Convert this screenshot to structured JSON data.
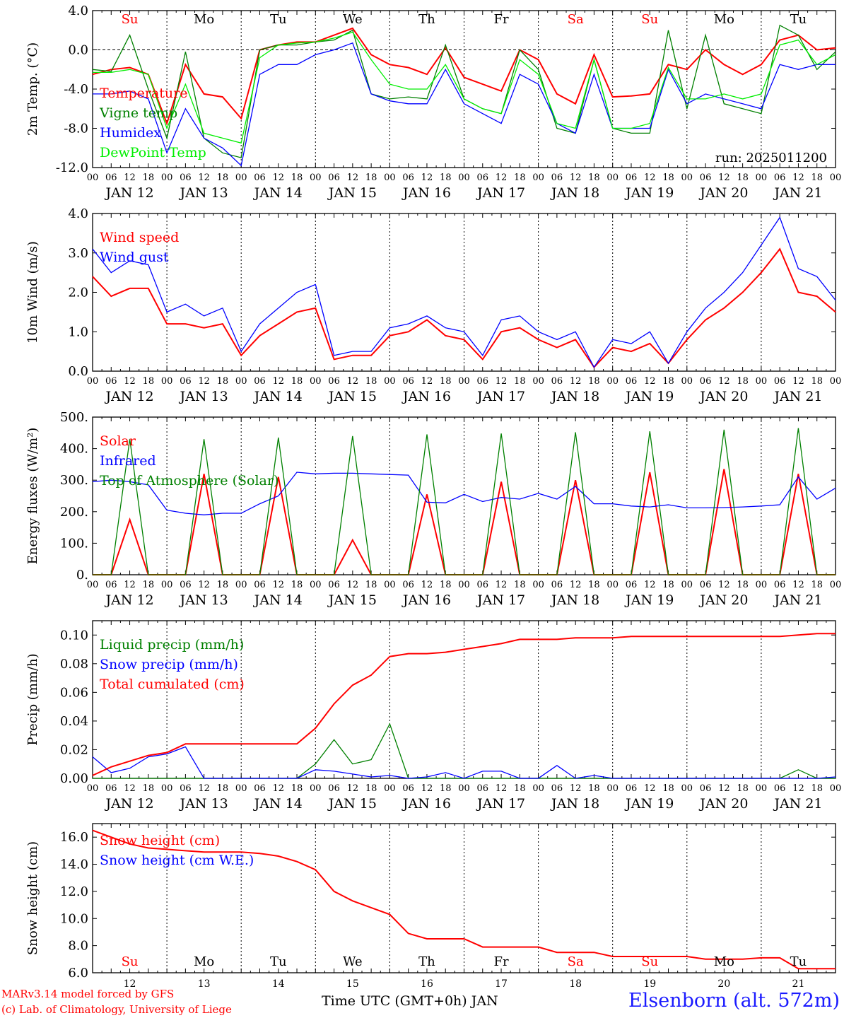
{
  "footer": {
    "model": "MARv3.14 model forced by GFS",
    "lab": "(c) Lab. of Climatology, University of Liege",
    "station": "Elsenborn (alt. 572m)",
    "xaxis_title": "Time UTC (GMT+0h) JAN"
  },
  "colors": {
    "red": "#ff0000",
    "green": "#008000",
    "blue": "#0000ff",
    "lightgreen": "#00ee00"
  },
  "chart_data": [
    {
      "type": "line",
      "ylabel": "2m Temp. (°C)",
      "ylim": [
        -12,
        4
      ],
      "yticks": [
        "4.0",
        "0.0",
        "-4.0",
        "-8.0",
        "-12.0"
      ],
      "yticks_values": [
        4,
        0,
        -4,
        -8,
        -12
      ],
      "zero_line": true,
      "weekday_labels": [
        "Su",
        "Mo",
        "Tu",
        "We",
        "Th",
        "Fr",
        "Sa",
        "Su",
        "Mo",
        "Tu"
      ],
      "weekday_colors": [
        "#ff0000",
        "#000000",
        "#000000",
        "#000000",
        "#000000",
        "#000000",
        "#ff0000",
        "#ff0000",
        "#000000",
        "#000000"
      ],
      "annotation": "run: 2025011200",
      "x_hours": [
        0,
        6,
        12,
        18,
        24,
        30,
        36,
        42,
        48,
        54,
        60,
        66,
        72,
        78,
        84,
        90,
        96,
        102,
        108,
        114,
        120,
        126,
        132,
        138,
        144,
        150,
        156,
        162,
        168,
        174,
        180,
        186,
        192,
        198,
        204,
        210,
        216,
        222,
        228,
        234,
        240
      ],
      "series": [
        {
          "name": "Temperature",
          "color": "#ff0000",
          "values": [
            -2.5,
            -2.0,
            -1.8,
            -2.5,
            -7.5,
            -1.5,
            -4.5,
            -4.8,
            -7.0,
            0.0,
            0.5,
            0.8,
            0.8,
            1.5,
            2.2,
            -0.5,
            -1.5,
            -1.8,
            -2.5,
            0.2,
            -2.8,
            -3.5,
            -4.2,
            0.0,
            -1.0,
            -4.5,
            -5.5,
            -0.5,
            -4.8,
            -4.7,
            -4.5,
            -1.5,
            -2.0,
            0.0,
            -1.5,
            -2.5,
            -1.5,
            1.0,
            1.5,
            0.0,
            0.2
          ]
        },
        {
          "name": "Vigne temp",
          "color": "#008000",
          "values": [
            -2.0,
            -2.2,
            1.5,
            -4.0,
            -9.0,
            -0.2,
            -9.0,
            -10.5,
            -11.0,
            0.0,
            0.5,
            0.5,
            0.8,
            1.0,
            2.0,
            -4.5,
            -5.0,
            -4.8,
            -5.0,
            0.5,
            -5.0,
            -6.0,
            -6.5,
            0.0,
            -2.0,
            -8.0,
            -8.5,
            -1.0,
            -8.0,
            -8.5,
            -8.5,
            2.0,
            -6.0,
            1.5,
            -5.5,
            -6.0,
            -6.5,
            2.5,
            1.5,
            -2.0,
            -0.2
          ]
        },
        {
          "name": "Humidex",
          "color": "#0000ff",
          "values": [
            -4.5,
            -4.5,
            -4.2,
            -5.0,
            -10.5,
            -6.0,
            -9.0,
            -10.0,
            -11.8,
            -2.5,
            -1.5,
            -1.5,
            -0.5,
            0.0,
            0.7,
            -4.5,
            -5.2,
            -5.5,
            -5.5,
            -2.0,
            -5.5,
            -6.5,
            -7.5,
            -2.5,
            -3.5,
            -7.5,
            -8.5,
            -2.5,
            -8.0,
            -8.0,
            -8.0,
            -2.0,
            -5.5,
            -4.5,
            -5.0,
            -5.5,
            -6.0,
            -1.5,
            -2.0,
            -1.5,
            -1.5
          ]
        },
        {
          "name": "DewPoint Temp",
          "color": "#00ee00",
          "values": [
            -2.3,
            -2.3,
            -2.0,
            -2.5,
            -8.0,
            -3.5,
            -8.5,
            -9.0,
            -9.5,
            -0.8,
            0.5,
            0.7,
            0.8,
            1.2,
            1.8,
            -1.0,
            -3.5,
            -4.0,
            -4.0,
            -1.5,
            -5.0,
            -6.0,
            -6.5,
            -1.0,
            -2.5,
            -7.5,
            -8.0,
            -1.0,
            -8.0,
            -8.0,
            -7.5,
            -1.8,
            -5.0,
            -5.0,
            -4.5,
            -5.0,
            -4.5,
            0.5,
            1.0,
            -1.5,
            -0.5
          ]
        }
      ]
    },
    {
      "type": "line",
      "ylabel": "10m Wind (m/s)",
      "ylim": [
        0,
        4
      ],
      "yticks": [
        "4.0",
        "3.0",
        "2.0",
        "1.0",
        "0.0"
      ],
      "yticks_values": [
        4,
        3,
        2,
        1,
        0
      ],
      "x_hours": [
        0,
        6,
        12,
        18,
        24,
        30,
        36,
        42,
        48,
        54,
        60,
        66,
        72,
        78,
        84,
        90,
        96,
        102,
        108,
        114,
        120,
        126,
        132,
        138,
        144,
        150,
        156,
        162,
        168,
        174,
        180,
        186,
        192,
        198,
        204,
        210,
        216,
        222,
        228,
        234,
        240
      ],
      "series": [
        {
          "name": "Wind speed",
          "color": "#ff0000",
          "values": [
            2.4,
            1.9,
            2.1,
            2.1,
            1.2,
            1.2,
            1.1,
            1.2,
            0.4,
            0.9,
            1.2,
            1.5,
            1.6,
            0.3,
            0.4,
            0.4,
            0.9,
            1.0,
            1.3,
            0.9,
            0.8,
            0.3,
            1.0,
            1.1,
            0.8,
            0.6,
            0.8,
            0.1,
            0.6,
            0.5,
            0.7,
            0.2,
            0.8,
            1.3,
            1.6,
            2.0,
            2.5,
            3.1,
            2.0,
            1.9,
            1.5
          ]
        },
        {
          "name": "Wind gust",
          "color": "#0000ff",
          "values": [
            3.1,
            2.5,
            2.8,
            2.7,
            1.5,
            1.7,
            1.4,
            1.6,
            0.5,
            1.2,
            1.6,
            2.0,
            2.2,
            0.4,
            0.5,
            0.5,
            1.1,
            1.2,
            1.4,
            1.1,
            1.0,
            0.4,
            1.3,
            1.4,
            1.0,
            0.8,
            1.0,
            0.1,
            0.8,
            0.7,
            1.0,
            0.2,
            1.0,
            1.6,
            2.0,
            2.5,
            3.2,
            3.9,
            2.6,
            2.4,
            1.8
          ]
        }
      ]
    },
    {
      "type": "line",
      "ylabel": "Energy fluxes (W/m²)",
      "ylim": [
        0,
        500
      ],
      "yticks": [
        "500.",
        "400.",
        "300.",
        "200.",
        "100.",
        "0."
      ],
      "yticks_values": [
        500,
        400,
        300,
        200,
        100,
        0
      ],
      "x_hours": [
        0,
        6,
        12,
        18,
        24,
        30,
        36,
        42,
        48,
        54,
        60,
        66,
        72,
        78,
        84,
        90,
        96,
        102,
        108,
        114,
        120,
        126,
        132,
        138,
        144,
        150,
        156,
        162,
        168,
        174,
        180,
        186,
        192,
        198,
        204,
        210,
        216,
        222,
        228,
        234,
        240
      ],
      "series": [
        {
          "name": "Solar",
          "color": "#ff0000",
          "values": [
            0,
            0,
            175,
            0,
            0,
            0,
            320,
            0,
            0,
            0,
            310,
            0,
            0,
            0,
            110,
            0,
            0,
            0,
            255,
            0,
            0,
            0,
            295,
            0,
            0,
            0,
            300,
            0,
            0,
            0,
            325,
            0,
            0,
            0,
            335,
            0,
            0,
            0,
            320,
            0,
            0
          ]
        },
        {
          "name": "Infrared",
          "color": "#0000ff",
          "values": [
            295,
            300,
            295,
            285,
            205,
            195,
            190,
            195,
            195,
            225,
            250,
            325,
            320,
            322,
            322,
            320,
            318,
            316,
            230,
            228,
            255,
            232,
            245,
            240,
            258,
            240,
            280,
            225,
            225,
            218,
            215,
            222,
            212,
            212,
            213,
            215,
            218,
            222,
            310,
            240,
            275
          ]
        },
        {
          "name": "Top of Atmosphere (Solar)",
          "color": "#008000",
          "values": [
            0,
            0,
            430,
            0,
            0,
            0,
            430,
            0,
            0,
            0,
            435,
            0,
            0,
            0,
            440,
            0,
            0,
            0,
            445,
            0,
            0,
            0,
            448,
            0,
            0,
            0,
            452,
            0,
            0,
            0,
            455,
            0,
            0,
            0,
            460,
            0,
            0,
            0,
            465,
            0,
            0
          ]
        }
      ]
    },
    {
      "type": "line",
      "ylabel": "Precip (mm/h)",
      "ylim": [
        0,
        0.11
      ],
      "yticks": [
        "0.10",
        "0.08",
        "0.06",
        "0.04",
        "0.02",
        "0.00"
      ],
      "yticks_values": [
        0.1,
        0.08,
        0.06,
        0.04,
        0.02,
        0.0
      ],
      "x_hours": [
        0,
        6,
        12,
        18,
        24,
        30,
        36,
        42,
        48,
        54,
        60,
        66,
        72,
        78,
        84,
        90,
        96,
        102,
        108,
        114,
        120,
        126,
        132,
        138,
        144,
        150,
        156,
        162,
        168,
        174,
        180,
        186,
        192,
        198,
        204,
        210,
        216,
        222,
        228,
        234,
        240
      ],
      "series": [
        {
          "name": "Liquid precip (mm/h)",
          "color": "#008000",
          "values": [
            0,
            0,
            0,
            0,
            0,
            0,
            0,
            0,
            0,
            0,
            0,
            0,
            0.01,
            0.027,
            0.01,
            0.013,
            0.038,
            0,
            0,
            0,
            0,
            0,
            0,
            0,
            0,
            0,
            0,
            0,
            0,
            0,
            0,
            0,
            0,
            0,
            0,
            0,
            0,
            0,
            0.006,
            0,
            0
          ]
        },
        {
          "name": "Snow precip (mm/h)",
          "color": "#0000ff",
          "values": [
            0.015,
            0.004,
            0.007,
            0.015,
            0.017,
            0.022,
            0,
            0,
            0,
            0,
            0,
            0,
            0.006,
            0.005,
            0.003,
            0.001,
            0.002,
            0,
            0.001,
            0.004,
            0,
            0.005,
            0.005,
            0,
            0,
            0.009,
            0,
            0.002,
            0,
            0,
            0,
            0,
            0,
            0,
            0,
            0,
            0,
            0,
            0,
            0,
            0.001
          ]
        },
        {
          "name": "Total cumulated (cm)",
          "color": "#ff0000",
          "values": [
            0.002,
            0.008,
            0.012,
            0.016,
            0.018,
            0.024,
            0.024,
            0.024,
            0.024,
            0.024,
            0.024,
            0.024,
            0.035,
            0.052,
            0.065,
            0.072,
            0.085,
            0.087,
            0.087,
            0.088,
            0.09,
            0.092,
            0.094,
            0.097,
            0.097,
            0.097,
            0.098,
            0.098,
            0.098,
            0.099,
            0.099,
            0.099,
            0.099,
            0.099,
            0.099,
            0.099,
            0.099,
            0.099,
            0.1,
            0.101,
            0.101
          ]
        }
      ]
    },
    {
      "type": "line",
      "ylabel": "Snow height (cm)",
      "ylim": [
        6,
        17
      ],
      "yticks": [
        "16.0",
        "14.0",
        "12.0",
        "10.0",
        "8.0",
        "6.0"
      ],
      "yticks_values": [
        16,
        14,
        12,
        10,
        8,
        6
      ],
      "weekday_labels": [
        "Su",
        "Mo",
        "Tu",
        "We",
        "Th",
        "Fr",
        "Sa",
        "Su",
        "Mo",
        "Tu"
      ],
      "weekday_colors": [
        "#ff0000",
        "#000000",
        "#000000",
        "#000000",
        "#000000",
        "#000000",
        "#ff0000",
        "#ff0000",
        "#000000",
        "#000000"
      ],
      "bottom_ticks": [
        "12",
        "13",
        "14",
        "15",
        "16",
        "17",
        "18",
        "19",
        "20",
        "21"
      ],
      "x_hours": [
        0,
        6,
        12,
        18,
        24,
        30,
        36,
        42,
        48,
        54,
        60,
        66,
        72,
        78,
        84,
        90,
        96,
        102,
        108,
        114,
        120,
        126,
        132,
        138,
        144,
        150,
        156,
        162,
        168,
        174,
        180,
        186,
        192,
        198,
        204,
        210,
        216,
        222,
        228,
        234,
        240
      ],
      "series": [
        {
          "name": "Snow height (cm)",
          "color": "#ff0000",
          "values": [
            16.5,
            16.0,
            15.5,
            15.2,
            15.1,
            15.0,
            14.9,
            14.9,
            14.9,
            14.8,
            14.6,
            14.2,
            13.6,
            12.0,
            11.3,
            10.8,
            10.3,
            8.9,
            8.5,
            8.5,
            8.5,
            7.9,
            7.9,
            7.9,
            7.9,
            7.5,
            7.5,
            7.5,
            7.2,
            7.2,
            7.2,
            7.2,
            7.2,
            7.0,
            7.0,
            7.0,
            7.1,
            7.1,
            6.3,
            6.3,
            6.3
          ]
        },
        {
          "name": "Snow height (cm W.E.)",
          "color": "#0000ff",
          "values": []
        }
      ]
    }
  ],
  "axis_days": [
    "JAN 12",
    "JAN 13",
    "JAN 14",
    "JAN 15",
    "JAN 16",
    "JAN 17",
    "JAN 18",
    "JAN 19",
    "JAN 20",
    "JAN 21"
  ],
  "axis_hours": [
    "00",
    "06",
    "12",
    "18"
  ],
  "axis_end": "00"
}
